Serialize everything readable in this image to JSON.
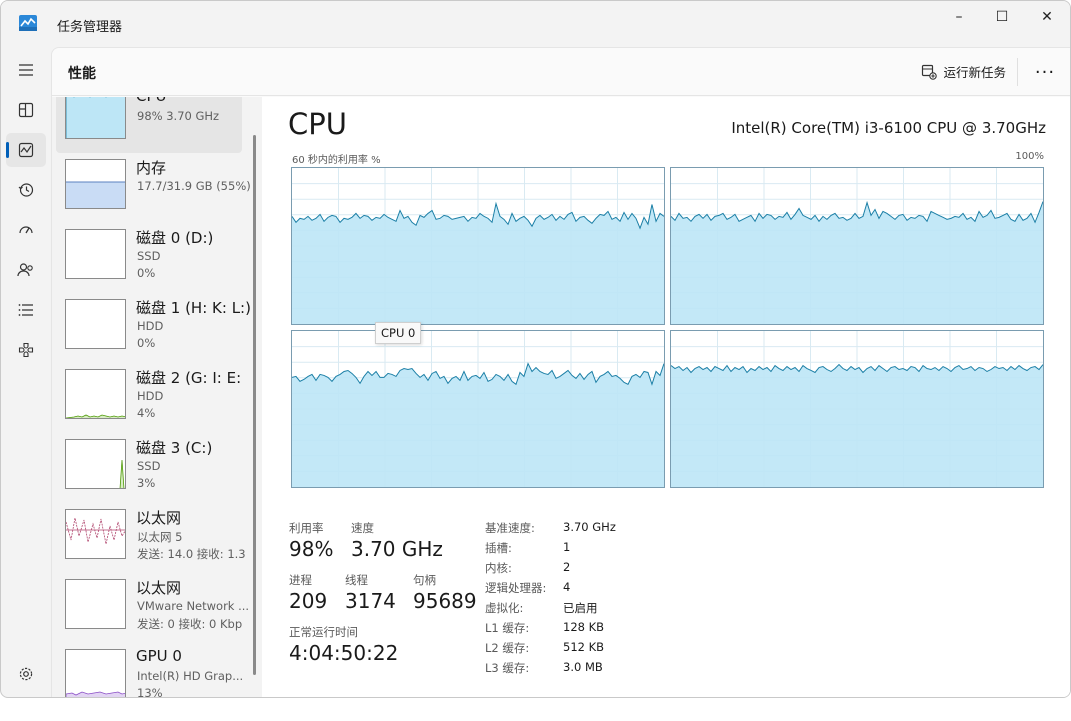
{
  "window": {
    "title": "任务管理器",
    "minimize": "–",
    "maximize": "☐",
    "close": "✕"
  },
  "header": {
    "title": "性能",
    "run_task": "运行新任务",
    "more": "···"
  },
  "nav": [
    {
      "icon": "menu-icon"
    },
    {
      "icon": "processes-icon"
    },
    {
      "icon": "performance-icon",
      "active": true
    },
    {
      "icon": "app-history-icon"
    },
    {
      "icon": "startup-apps-icon"
    },
    {
      "icon": "users-icon"
    },
    {
      "icon": "details-icon"
    },
    {
      "icon": "services-icon"
    },
    {
      "icon": "settings-icon"
    }
  ],
  "devices": [
    {
      "name": "CPU",
      "line1": "98% 3.70 GHz",
      "line2": "",
      "kind": "cpu"
    },
    {
      "name": "内存",
      "line1": "17.7/31.9 GB (55%)",
      "line2": "",
      "kind": "mem"
    },
    {
      "name": "磁盘 0 (D:)",
      "line1": "SSD",
      "line2": "0%",
      "kind": "empty"
    },
    {
      "name": "磁盘 1 (H: K: L:)",
      "line1": "HDD",
      "line2": "0%",
      "kind": "empty"
    },
    {
      "name": "磁盘 2 (G: I: E:",
      "line1": "HDD",
      "line2": "4%",
      "kind": "disk2"
    },
    {
      "name": "磁盘 3 (C:)",
      "line1": "SSD",
      "line2": "3%",
      "kind": "disk3"
    },
    {
      "name": "以太网",
      "line1": "以太网 5",
      "line2": "发送: 14.0  接收: 1.3",
      "kind": "eth"
    },
    {
      "name": "以太网",
      "line1": "VMware Network ...",
      "line2": "发送: 0  接收: 0 Kbp",
      "kind": "empty"
    },
    {
      "name": "GPU 0",
      "line1": "Intel(R) HD Grap...",
      "line2": "13%",
      "kind": "gpu"
    }
  ],
  "cpu": {
    "title": "CPU",
    "model": "Intel(R) Core(TM) i3-6100 CPU @ 3.70GHz",
    "graph_label": "60 秒内的利用率 %",
    "graph_max": "100%",
    "tooltip": "CPU 0",
    "stats": {
      "util_label": "利用率",
      "util_value": "98%",
      "speed_label": "速度",
      "speed_value": "3.70 GHz",
      "proc_label": "进程",
      "proc_value": "209",
      "thread_label": "线程",
      "thread_value": "3174",
      "handle_label": "句柄",
      "handle_value": "95689",
      "uptime_label": "正常运行时间",
      "uptime_value": "4:04:50:22"
    },
    "info": [
      {
        "k": "基准速度:",
        "v": "3.70 GHz"
      },
      {
        "k": "插槽:",
        "v": "1"
      },
      {
        "k": "内核:",
        "v": "2"
      },
      {
        "k": "逻辑处理器:",
        "v": "4"
      },
      {
        "k": "虚拟化:",
        "v": "已启用"
      },
      {
        "k": "L1 缓存:",
        "v": "128 KB"
      },
      {
        "k": "L2 缓存:",
        "v": "512 KB"
      },
      {
        "k": "L3 缓存:",
        "v": "3.0 MB"
      }
    ]
  },
  "colors": {
    "graph_fill": "#bde6f6",
    "graph_line": "#1b7fa6",
    "grid": "#d9eaf2",
    "accent": "#005fb8"
  }
}
